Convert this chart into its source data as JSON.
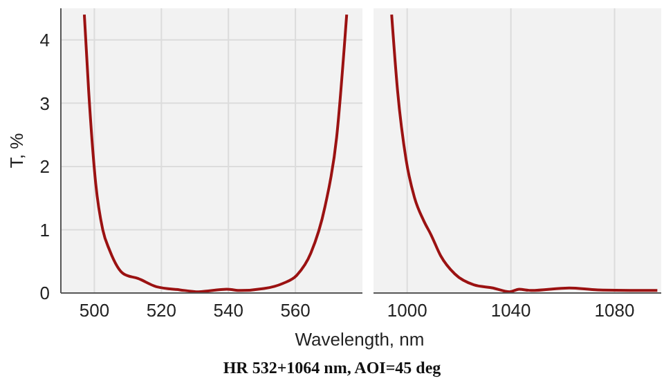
{
  "chart_data": [
    {
      "type": "line",
      "ylabel": "T, %",
      "xlabel": "Wavelength, nm",
      "annotations": [
        "HR 532+1064 nm, AOI=45 deg"
      ],
      "xlim": [
        490,
        580
      ],
      "xticks": [
        500,
        520,
        540,
        560
      ],
      "ylim": [
        0,
        4.5
      ],
      "yticks": [
        0,
        1,
        2,
        3,
        4
      ],
      "grid": true,
      "x": [
        497.0,
        498.3,
        500.4,
        502.5,
        504.6,
        508.8,
        513,
        518.5,
        525.5,
        531.1,
        539.5,
        543.7,
        550.6,
        556.2,
        560.4,
        564.6,
        568.8,
        572.3,
        575.3
      ],
      "series": [
        {
          "color": "#9b1212",
          "values": [
            4.4,
            3.19,
            1.73,
            1.0,
            0.67,
            0.3,
            0.23,
            0.1,
            0.05,
            0.02,
            0.06,
            0.04,
            0.07,
            0.15,
            0.28,
            0.63,
            1.36,
            2.46,
            4.4
          ]
        }
      ]
    },
    {
      "type": "line",
      "xlim": [
        987,
        1098
      ],
      "xticks": [
        1000,
        1040,
        1080
      ],
      "ylim": [
        0,
        4.5
      ],
      "yticks": [
        0,
        1,
        2,
        3,
        4
      ],
      "grid": true,
      "tick_labels": "x",
      "x": [
        994.0,
        996.3,
        999.6,
        1002.8,
        1006.4,
        1009.2,
        1012.9,
        1018.4,
        1025.7,
        1033.1,
        1039.5,
        1043.2,
        1047.8,
        1062.5,
        1073.5,
        1096.5
      ],
      "series": [
        {
          "color": "#9b1212",
          "values": [
            4.4,
            3.19,
            2.1,
            1.51,
            1.14,
            0.92,
            0.59,
            0.3,
            0.13,
            0.08,
            0.02,
            0.06,
            0.04,
            0.08,
            0.05,
            0.04
          ]
        }
      ]
    }
  ]
}
